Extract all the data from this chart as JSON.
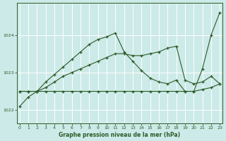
{
  "title": "Graphe pression niveau de la mer (hPa)",
  "bg_color": "#cceae8",
  "grid_color": "#b0d8d4",
  "line_color": "#2d5a27",
  "xlim": [
    -0.3,
    23.3
  ],
  "ylim": [
    1021.65,
    1024.85
  ],
  "yticks": [
    1022,
    1023,
    1024
  ],
  "xticks": [
    0,
    1,
    2,
    3,
    4,
    5,
    6,
    7,
    8,
    9,
    10,
    11,
    12,
    13,
    14,
    15,
    16,
    17,
    18,
    19,
    20,
    21,
    22,
    23
  ],
  "s1_x": [
    0,
    1,
    2,
    3,
    4,
    5,
    6,
    7,
    8,
    9,
    10,
    11,
    12,
    13,
    14,
    15,
    16,
    17,
    18,
    19,
    20,
    21,
    22,
    23
  ],
  "s1_y": [
    1022.1,
    1022.35,
    1022.5,
    1022.75,
    1022.95,
    1023.15,
    1023.35,
    1023.55,
    1023.75,
    1023.88,
    1023.95,
    1024.05,
    1023.55,
    1023.3,
    1023.05,
    1022.85,
    1022.75,
    1022.7,
    1022.8,
    1022.5,
    1022.5,
    1023.1,
    1024.0,
    1024.6
  ],
  "s2_x": [
    0,
    1,
    2,
    3,
    4,
    5,
    6,
    7,
    8,
    9,
    10,
    11,
    12,
    13,
    14,
    15,
    16,
    17,
    18,
    19,
    20,
    21,
    22,
    23
  ],
  "s2_y": [
    1022.5,
    1022.5,
    1022.5,
    1022.6,
    1022.75,
    1022.9,
    1023.0,
    1023.1,
    1023.2,
    1023.3,
    1023.4,
    1023.5,
    1023.5,
    1023.45,
    1023.45,
    1023.5,
    1023.55,
    1023.65,
    1023.7,
    1022.8,
    1022.7,
    1022.75,
    1022.9,
    1022.7
  ],
  "s3_x": [
    0,
    1,
    2,
    3,
    4,
    5,
    6,
    7,
    8,
    9,
    10,
    11,
    12,
    13,
    14,
    15,
    16,
    17,
    18,
    19,
    20,
    21,
    22,
    23
  ],
  "s3_y": [
    1022.5,
    1022.5,
    1022.5,
    1022.5,
    1022.5,
    1022.5,
    1022.5,
    1022.5,
    1022.5,
    1022.5,
    1022.5,
    1022.5,
    1022.5,
    1022.5,
    1022.5,
    1022.5,
    1022.5,
    1022.5,
    1022.5,
    1022.5,
    1022.5,
    1022.55,
    1022.6,
    1022.7
  ]
}
